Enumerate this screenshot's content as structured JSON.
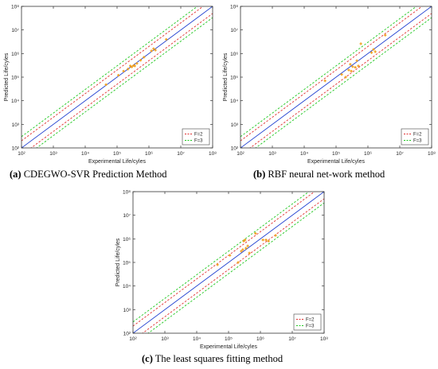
{
  "chart_data": [
    {
      "type": "scatter",
      "xlabel": "Experimental Life/cyles",
      "ylabel": "Predicted Life/cyles",
      "xscale": "log",
      "yscale": "log",
      "xlim": [
        100,
        100000000
      ],
      "ylim": [
        100,
        100000000
      ],
      "ticks": [
        "10²",
        "10³",
        "10⁴",
        "10⁵",
        "10⁶",
        "10⁷",
        "10⁸"
      ],
      "legend": [
        "F=2",
        "F=3"
      ],
      "legend_position": "bottom-right",
      "caption_letter": "(a)",
      "caption_text": "CDEGWO-SVR Prediction Method",
      "points": [
        [
          45000,
          48000
        ],
        [
          110000,
          120000
        ],
        [
          160000,
          180000
        ],
        [
          220000,
          220000
        ],
        [
          260000,
          300000
        ],
        [
          290000,
          270000
        ],
        [
          330000,
          310000
        ],
        [
          360000,
          300000
        ],
        [
          420000,
          380000
        ],
        [
          550000,
          520000
        ],
        [
          700000,
          700000
        ],
        [
          1200000,
          1300000
        ],
        [
          1400000,
          1600000
        ],
        [
          1600000,
          1400000
        ],
        [
          3500000,
          4000000
        ]
      ]
    },
    {
      "type": "scatter",
      "xlabel": "Experimental Life/cyles",
      "ylabel": "Predicted Life/cyles",
      "xscale": "log",
      "yscale": "log",
      "xlim": [
        100,
        100000000
      ],
      "ylim": [
        100,
        100000000
      ],
      "ticks": [
        "10²",
        "10³",
        "10⁴",
        "10⁵",
        "10⁶",
        "10⁷",
        "10⁸"
      ],
      "legend": [
        "F=2",
        "F=3"
      ],
      "legend_position": "bottom-right",
      "caption_letter": "(b)",
      "caption_text": "RBF neural net-work method",
      "points": [
        [
          45000,
          70000
        ],
        [
          150000,
          130000
        ],
        [
          200000,
          100000
        ],
        [
          250000,
          200000
        ],
        [
          280000,
          350000
        ],
        [
          300000,
          180000
        ],
        [
          330000,
          280000
        ],
        [
          400000,
          260000
        ],
        [
          450000,
          500000
        ],
        [
          500000,
          300000
        ],
        [
          600000,
          2600000
        ],
        [
          1300000,
          1100000
        ],
        [
          1500000,
          1500000
        ],
        [
          1700000,
          1200000
        ],
        [
          3500000,
          6000000
        ]
      ]
    },
    {
      "type": "scatter",
      "xlabel": "Experimental Life/cyles",
      "ylabel": "Predicted Life/cyles",
      "xscale": "log",
      "yscale": "log",
      "xlim": [
        100,
        100000000
      ],
      "ylim": [
        100,
        100000000
      ],
      "ticks": [
        "10²",
        "10³",
        "10⁴",
        "10⁵",
        "10⁶",
        "10⁷",
        "10⁸"
      ],
      "legend": [
        "F=2",
        "F=3"
      ],
      "legend_position": "bottom-right",
      "caption_letter": "(c)",
      "caption_text": "The least squares fitting method",
      "points": [
        [
          45000,
          80000
        ],
        [
          110000,
          200000
        ],
        [
          200000,
          100000
        ],
        [
          250000,
          300000
        ],
        [
          280000,
          350000
        ],
        [
          300000,
          800000
        ],
        [
          330000,
          900000
        ],
        [
          350000,
          400000
        ],
        [
          400000,
          500000
        ],
        [
          450000,
          250000
        ],
        [
          700000,
          1700000
        ],
        [
          1200000,
          900000
        ],
        [
          1500000,
          900000
        ],
        [
          1800000,
          800000
        ],
        [
          3000000,
          1400000
        ]
      ]
    }
  ]
}
